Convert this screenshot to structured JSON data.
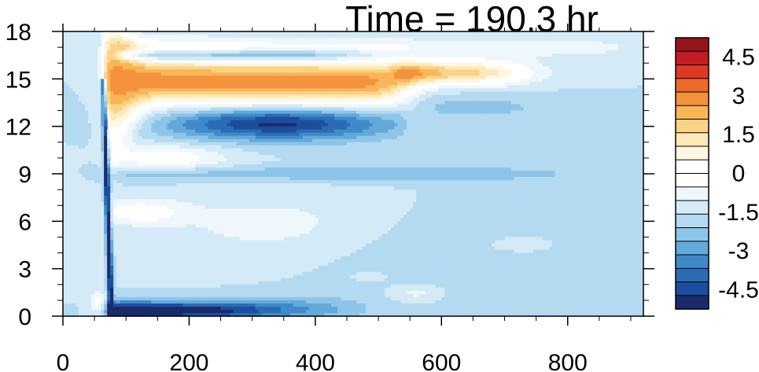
{
  "chart_data": {
    "type": "heatmap",
    "title": "Time = 190.3 hr",
    "xlabel": "",
    "ylabel": "",
    "xlim": [
      0,
      920
    ],
    "ylim": [
      0,
      18
    ],
    "x_ticks": [
      "0",
      "200",
      "400",
      "600",
      "800"
    ],
    "x_tick_values": [
      0,
      200,
      400,
      600,
      800
    ],
    "y_ticks": [
      "0",
      "3",
      "6",
      "9",
      "12",
      "15",
      "18"
    ],
    "y_tick_values": [
      0,
      3,
      6,
      9,
      12,
      15,
      18
    ],
    "colorbar": {
      "min": -5.25,
      "max": 5.25,
      "step": 0.75,
      "labels": [
        "4.5",
        "3",
        "1.5",
        "0",
        "-1.5",
        "-3",
        "-4.5"
      ],
      "label_values": [
        4.5,
        3,
        1.5,
        0,
        -1.5,
        -3,
        -4.5
      ],
      "colors": [
        "#1b2a6b",
        "#1d4e9e",
        "#2b6cb5",
        "#3f8ac9",
        "#63a9db",
        "#8ec4e8",
        "#b3daf1",
        "#d4eaf7",
        "#eef7fc",
        "#ffffff",
        "#ffffff",
        "#fef7e2",
        "#fde9b6",
        "#fbd386",
        "#f8b656",
        "#f5923e",
        "#ee6a2c",
        "#dd3a24",
        "#c21d22",
        "#96151a"
      ]
    },
    "features": [
      {
        "name": "upper positive band",
        "x_range": [
          75,
          540
        ],
        "y_center": 15.0,
        "peak": 5.25
      },
      {
        "name": "upper positive band extension",
        "x_range": [
          540,
          720
        ],
        "y_center": 15.5,
        "peak": 4.5
      },
      {
        "name": "top positive band",
        "x_range": [
          90,
          900
        ],
        "y_center": 17.2,
        "peak": 1.5
      },
      {
        "name": "negative band",
        "x_range": [
          130,
          540
        ],
        "y_center": 12.2,
        "peak": -4.5
      },
      {
        "name": "thin negative band",
        "x_range": [
          90,
          500
        ],
        "y_center": 16.5,
        "peak": -3
      },
      {
        "name": "mid positive band",
        "x_range": [
          80,
          300
        ],
        "y_center": 10.0,
        "peak": 1.5
      },
      {
        "name": "mid negative band",
        "x_range": [
          80,
          800
        ],
        "y_center": 9.2,
        "peak": -0.75
      },
      {
        "name": "low positive region",
        "x_range": [
          75,
          470
        ],
        "y_center": 6.0,
        "peak": 1.5
      },
      {
        "name": "surface negative band",
        "x_range": [
          70,
          460
        ],
        "y_center": 0.4,
        "peak": -5.25
      },
      {
        "name": "front line",
        "x_from": 65,
        "x_to": 78,
        "y_from": 15,
        "y_to": 0,
        "peak": -4.5
      }
    ]
  }
}
